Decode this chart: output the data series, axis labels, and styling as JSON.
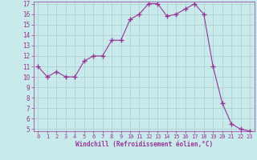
{
  "x": [
    0,
    1,
    2,
    3,
    4,
    5,
    6,
    7,
    8,
    9,
    10,
    11,
    12,
    13,
    14,
    15,
    16,
    17,
    18,
    19,
    20,
    21,
    22,
    23
  ],
  "y": [
    11,
    10,
    10.5,
    10,
    10,
    11.5,
    12,
    12,
    13.5,
    13.5,
    15.5,
    16,
    17,
    17,
    15.8,
    16,
    16.5,
    17,
    16,
    11,
    7.5,
    5.5,
    5,
    4.8
  ],
  "line_color": "#993399",
  "marker": "+",
  "marker_size": 4,
  "bg_color": "#c8eaea",
  "grid_color": "#aacccc",
  "xlabel": "Windchill (Refroidissement éolien,°C)",
  "xlabel_color": "#993399",
  "tick_color": "#993399",
  "ylim": [
    5,
    17
  ],
  "xlim": [
    -0.5,
    23.5
  ],
  "yticks": [
    5,
    6,
    7,
    8,
    9,
    10,
    11,
    12,
    13,
    14,
    15,
    16,
    17
  ],
  "xticks": [
    0,
    1,
    2,
    3,
    4,
    5,
    6,
    7,
    8,
    9,
    10,
    11,
    12,
    13,
    14,
    15,
    16,
    17,
    18,
    19,
    20,
    21,
    22,
    23
  ]
}
